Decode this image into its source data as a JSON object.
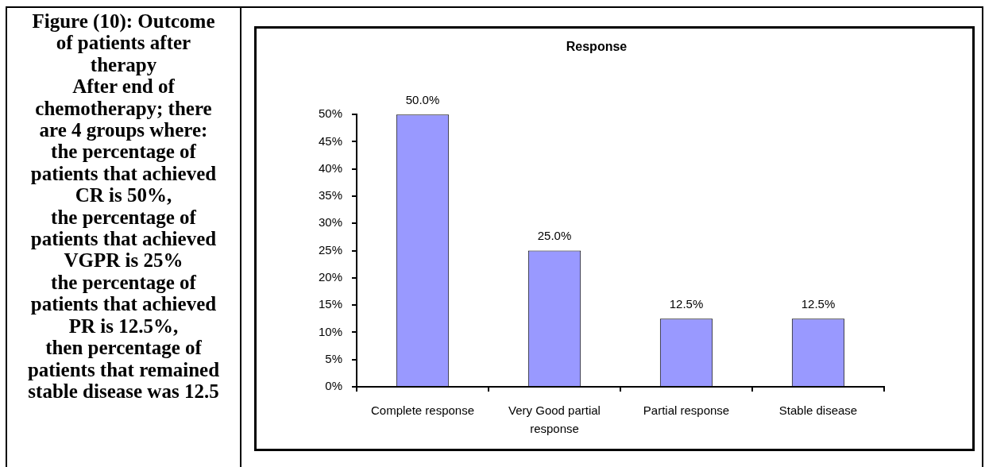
{
  "chart_data": {
    "type": "bar",
    "title": "Response",
    "categories": [
      "Complete response",
      "Very Good partial response",
      "Partial response",
      "Stable disease"
    ],
    "values": [
      50,
      25,
      12.5,
      12.5
    ],
    "color": "#9999ff",
    "value_labels": [
      "50.0%",
      "25.0%",
      "12.5%",
      "12.5%"
    ],
    "ylim": [
      0,
      50
    ],
    "yticks": [
      {
        "value": 0,
        "label": "0%"
      },
      {
        "value": 5,
        "label": "5%"
      },
      {
        "value": 10,
        "label": "10%"
      },
      {
        "value": 15,
        "label": "15%"
      },
      {
        "value": 20,
        "label": "20%"
      },
      {
        "value": 25,
        "label": "25%"
      },
      {
        "value": 30,
        "label": "30%"
      },
      {
        "value": 35,
        "label": "35%"
      },
      {
        "value": 40,
        "label": "40%"
      },
      {
        "value": 45,
        "label": "45%"
      },
      {
        "value": 50,
        "label": "50%"
      }
    ],
    "annotations": [
      "Figure (10): Outcome of patients after therapy",
      "After end of chemotherapy; there are 4 groups where:",
      "the percentage of patients that achieved CR is 50%,",
      "the percentage of patients that achieved VGPR is 25%",
      "the percentage of patients that achieved PR is 12.5%,",
      "then percentage of patients that remained stable disease was 12.5"
    ]
  }
}
